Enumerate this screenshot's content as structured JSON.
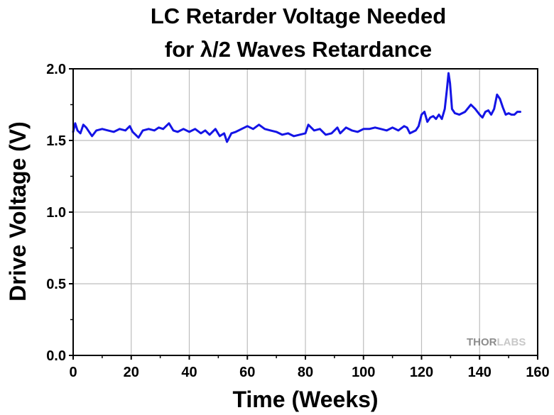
{
  "chart_data": {
    "type": "line",
    "title_line1": "LC Retarder Voltage Needed",
    "title_line2": "for λ/2 Waves Retardance",
    "xlabel": "Time (Weeks)",
    "ylabel": "Drive Voltage (V)",
    "xlim": [
      0,
      160
    ],
    "ylim": [
      0.0,
      2.0
    ],
    "x_ticks": [
      "0",
      "20",
      "40",
      "60",
      "80",
      "100",
      "120",
      "140",
      "160"
    ],
    "y_ticks": [
      "0.0",
      "0.5",
      "1.0",
      "1.5",
      "2.0"
    ],
    "grid": true,
    "line_color": "#1414e6",
    "series": [
      {
        "x": [
          0,
          0.7,
          1.5,
          2.5,
          3.5,
          4.5,
          5.5,
          6.5,
          8,
          10,
          12,
          14,
          16,
          18,
          19.5,
          20.5,
          21.5,
          22.5,
          24,
          26,
          28,
          29.5,
          31,
          33,
          34.5,
          36,
          38,
          40,
          42,
          44,
          45.5,
          47,
          49,
          50.5,
          52,
          53,
          54.5,
          56,
          58,
          60,
          62,
          64,
          66,
          68,
          70,
          72,
          74,
          76,
          78,
          80,
          81,
          83,
          85,
          87,
          89,
          91,
          92,
          94,
          96,
          98,
          100,
          102,
          104,
          106,
          108,
          110,
          112,
          114,
          115,
          116,
          117,
          118,
          119,
          120,
          121,
          122,
          123,
          124,
          125,
          126,
          127,
          128,
          128.7,
          129.3,
          129.8,
          130.5,
          131.5,
          133,
          135,
          137,
          138.5,
          140,
          141,
          142,
          143,
          144,
          145,
          146,
          147,
          148,
          149,
          150,
          151,
          152,
          153,
          154
        ],
        "y": [
          1.56,
          1.62,
          1.57,
          1.55,
          1.61,
          1.59,
          1.56,
          1.53,
          1.57,
          1.58,
          1.57,
          1.56,
          1.58,
          1.57,
          1.6,
          1.56,
          1.54,
          1.52,
          1.57,
          1.58,
          1.57,
          1.59,
          1.58,
          1.62,
          1.57,
          1.56,
          1.58,
          1.56,
          1.58,
          1.55,
          1.57,
          1.54,
          1.58,
          1.53,
          1.55,
          1.49,
          1.55,
          1.56,
          1.58,
          1.6,
          1.58,
          1.61,
          1.58,
          1.57,
          1.56,
          1.54,
          1.55,
          1.53,
          1.54,
          1.55,
          1.61,
          1.57,
          1.58,
          1.54,
          1.55,
          1.59,
          1.55,
          1.59,
          1.57,
          1.56,
          1.58,
          1.58,
          1.59,
          1.58,
          1.57,
          1.59,
          1.57,
          1.6,
          1.59,
          1.55,
          1.56,
          1.57,
          1.6,
          1.68,
          1.7,
          1.63,
          1.66,
          1.67,
          1.65,
          1.68,
          1.65,
          1.72,
          1.85,
          1.97,
          1.9,
          1.72,
          1.69,
          1.68,
          1.7,
          1.75,
          1.72,
          1.68,
          1.66,
          1.7,
          1.71,
          1.68,
          1.72,
          1.82,
          1.79,
          1.73,
          1.68,
          1.69,
          1.68,
          1.68,
          1.7,
          1.7
        ]
      }
    ]
  },
  "watermark": {
    "part1": "THOR",
    "part2": "LABS",
    "color1": "#8c8c8c",
    "color2": "#c8c8c8"
  }
}
